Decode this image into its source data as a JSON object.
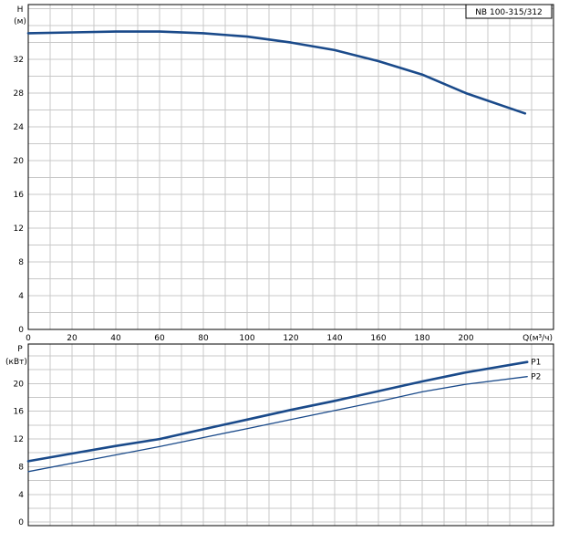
{
  "model_label": "NB 100-315/312",
  "colors": {
    "curve": "#1a4a8a",
    "grid": "#c8c8c8",
    "frame": "#000000"
  },
  "chart_data": [
    {
      "type": "line",
      "ylabel": "H",
      "yunit": "(м)",
      "xlabel": "Q(м³/ч)",
      "xlim": [
        0,
        240
      ],
      "ylim": [
        0,
        38.5
      ],
      "xticks": [
        0,
        20,
        40,
        60,
        80,
        100,
        120,
        140,
        160,
        180,
        200
      ],
      "yticks": [
        0,
        4,
        8,
        12,
        16,
        20,
        24,
        28,
        32
      ],
      "grid": true,
      "series": [
        {
          "x": [
            0,
            20,
            40,
            60,
            80,
            100,
            120,
            140,
            160,
            180,
            200,
            227
          ],
          "y": [
            35.1,
            35.2,
            35.3,
            35.3,
            35.1,
            34.7,
            34.0,
            33.1,
            31.8,
            30.2,
            28.0,
            25.6
          ]
        }
      ]
    },
    {
      "type": "line",
      "ylabel": "P",
      "yunit": "(кВт)",
      "xlim": [
        0,
        240
      ],
      "ylim": [
        -0.5,
        25.7
      ],
      "yticks": [
        0,
        4,
        8,
        12,
        16,
        20
      ],
      "grid": true,
      "series": [
        {
          "name": "P1",
          "x": [
            0,
            20,
            40,
            60,
            80,
            100,
            120,
            140,
            160,
            180,
            200,
            228
          ],
          "y": [
            8.8,
            9.9,
            11.0,
            12.0,
            13.4,
            14.8,
            16.2,
            17.5,
            18.9,
            20.3,
            21.6,
            23.1
          ]
        },
        {
          "name": "P2",
          "x": [
            0,
            20,
            40,
            60,
            80,
            100,
            120,
            140,
            160,
            180,
            200,
            228
          ],
          "y": [
            7.3,
            8.5,
            9.7,
            10.9,
            12.2,
            13.5,
            14.8,
            16.1,
            17.4,
            18.8,
            19.9,
            21.0
          ]
        }
      ]
    }
  ]
}
